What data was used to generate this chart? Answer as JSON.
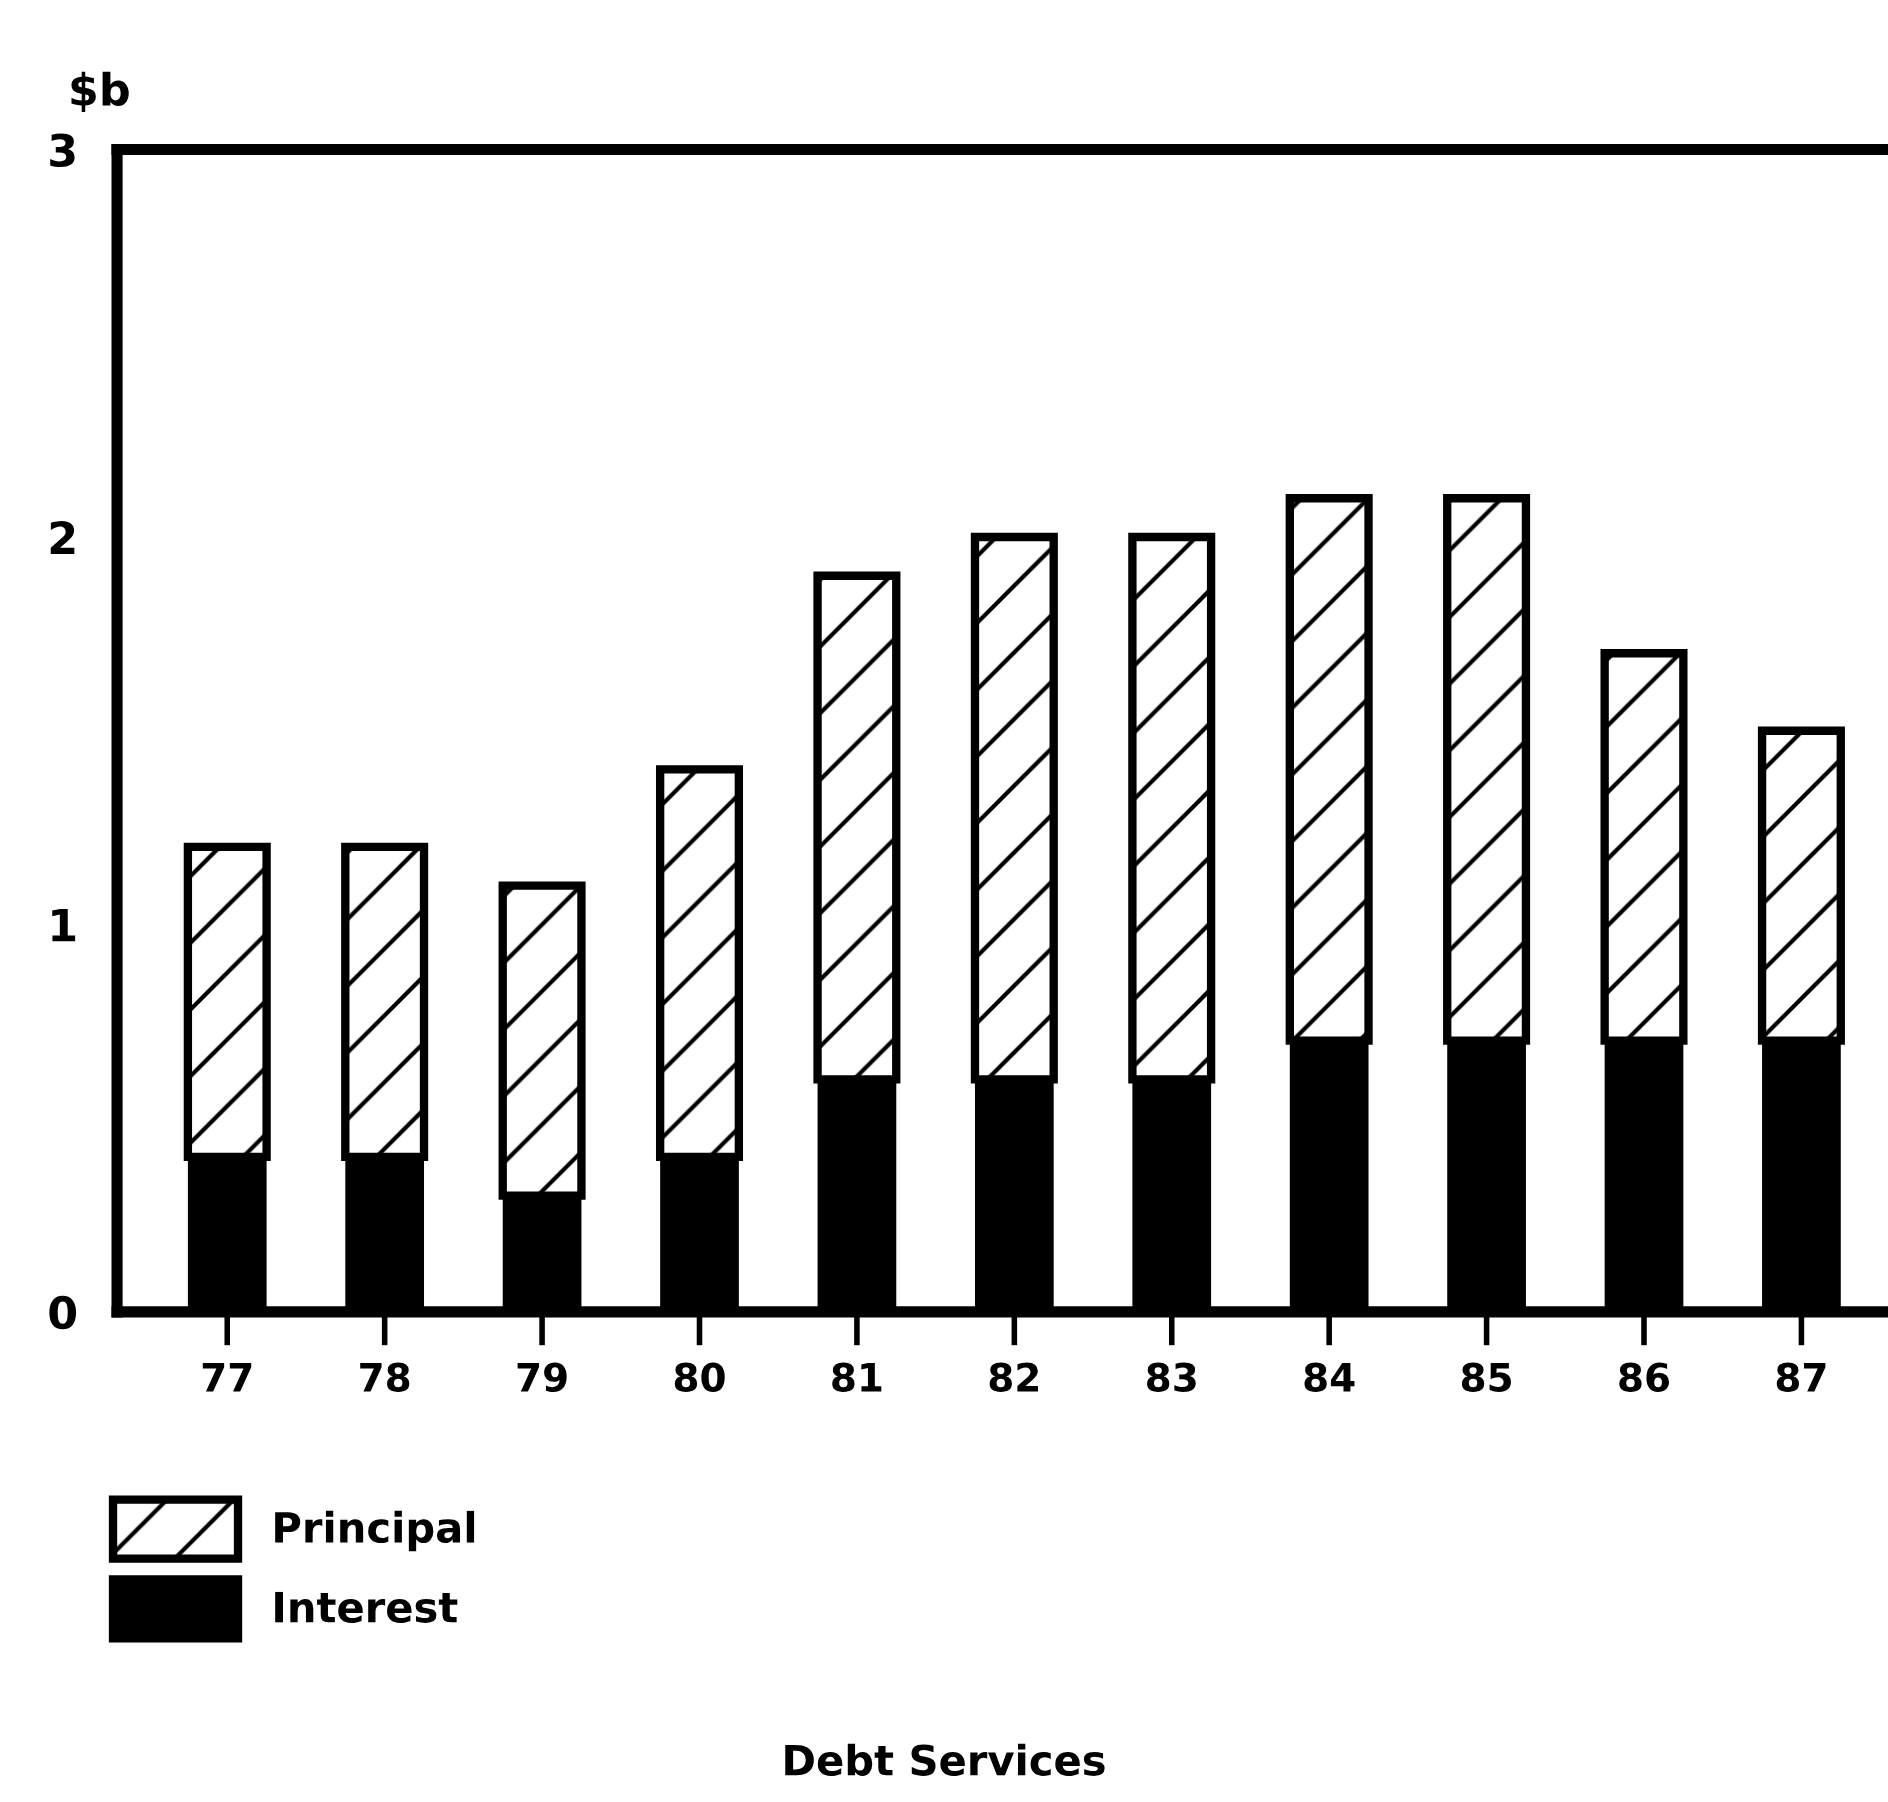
{
  "chart_data": {
    "type": "bar",
    "title": "Debt Services",
    "ylabel": "$b",
    "categories": [
      "77",
      "78",
      "79",
      "80",
      "81",
      "82",
      "83",
      "84",
      "85",
      "86",
      "87"
    ],
    "stacked": true,
    "series": [
      {
        "name": "Interest",
        "color": "#000000",
        "values": [
          0.4,
          0.4,
          0.3,
          0.4,
          0.6,
          0.6,
          0.6,
          0.7,
          0.7,
          0.7,
          0.7
        ]
      },
      {
        "name": "Principal",
        "color": "#ffffff",
        "values": [
          0.8,
          0.8,
          0.8,
          1.0,
          1.3,
          1.4,
          1.4,
          1.4,
          1.4,
          1.0,
          0.8
        ]
      }
    ],
    "ylim": [
      0,
      3
    ],
    "yticks": [
      0,
      1,
      2,
      3
    ],
    "grid": false,
    "legend": "bottom left"
  }
}
